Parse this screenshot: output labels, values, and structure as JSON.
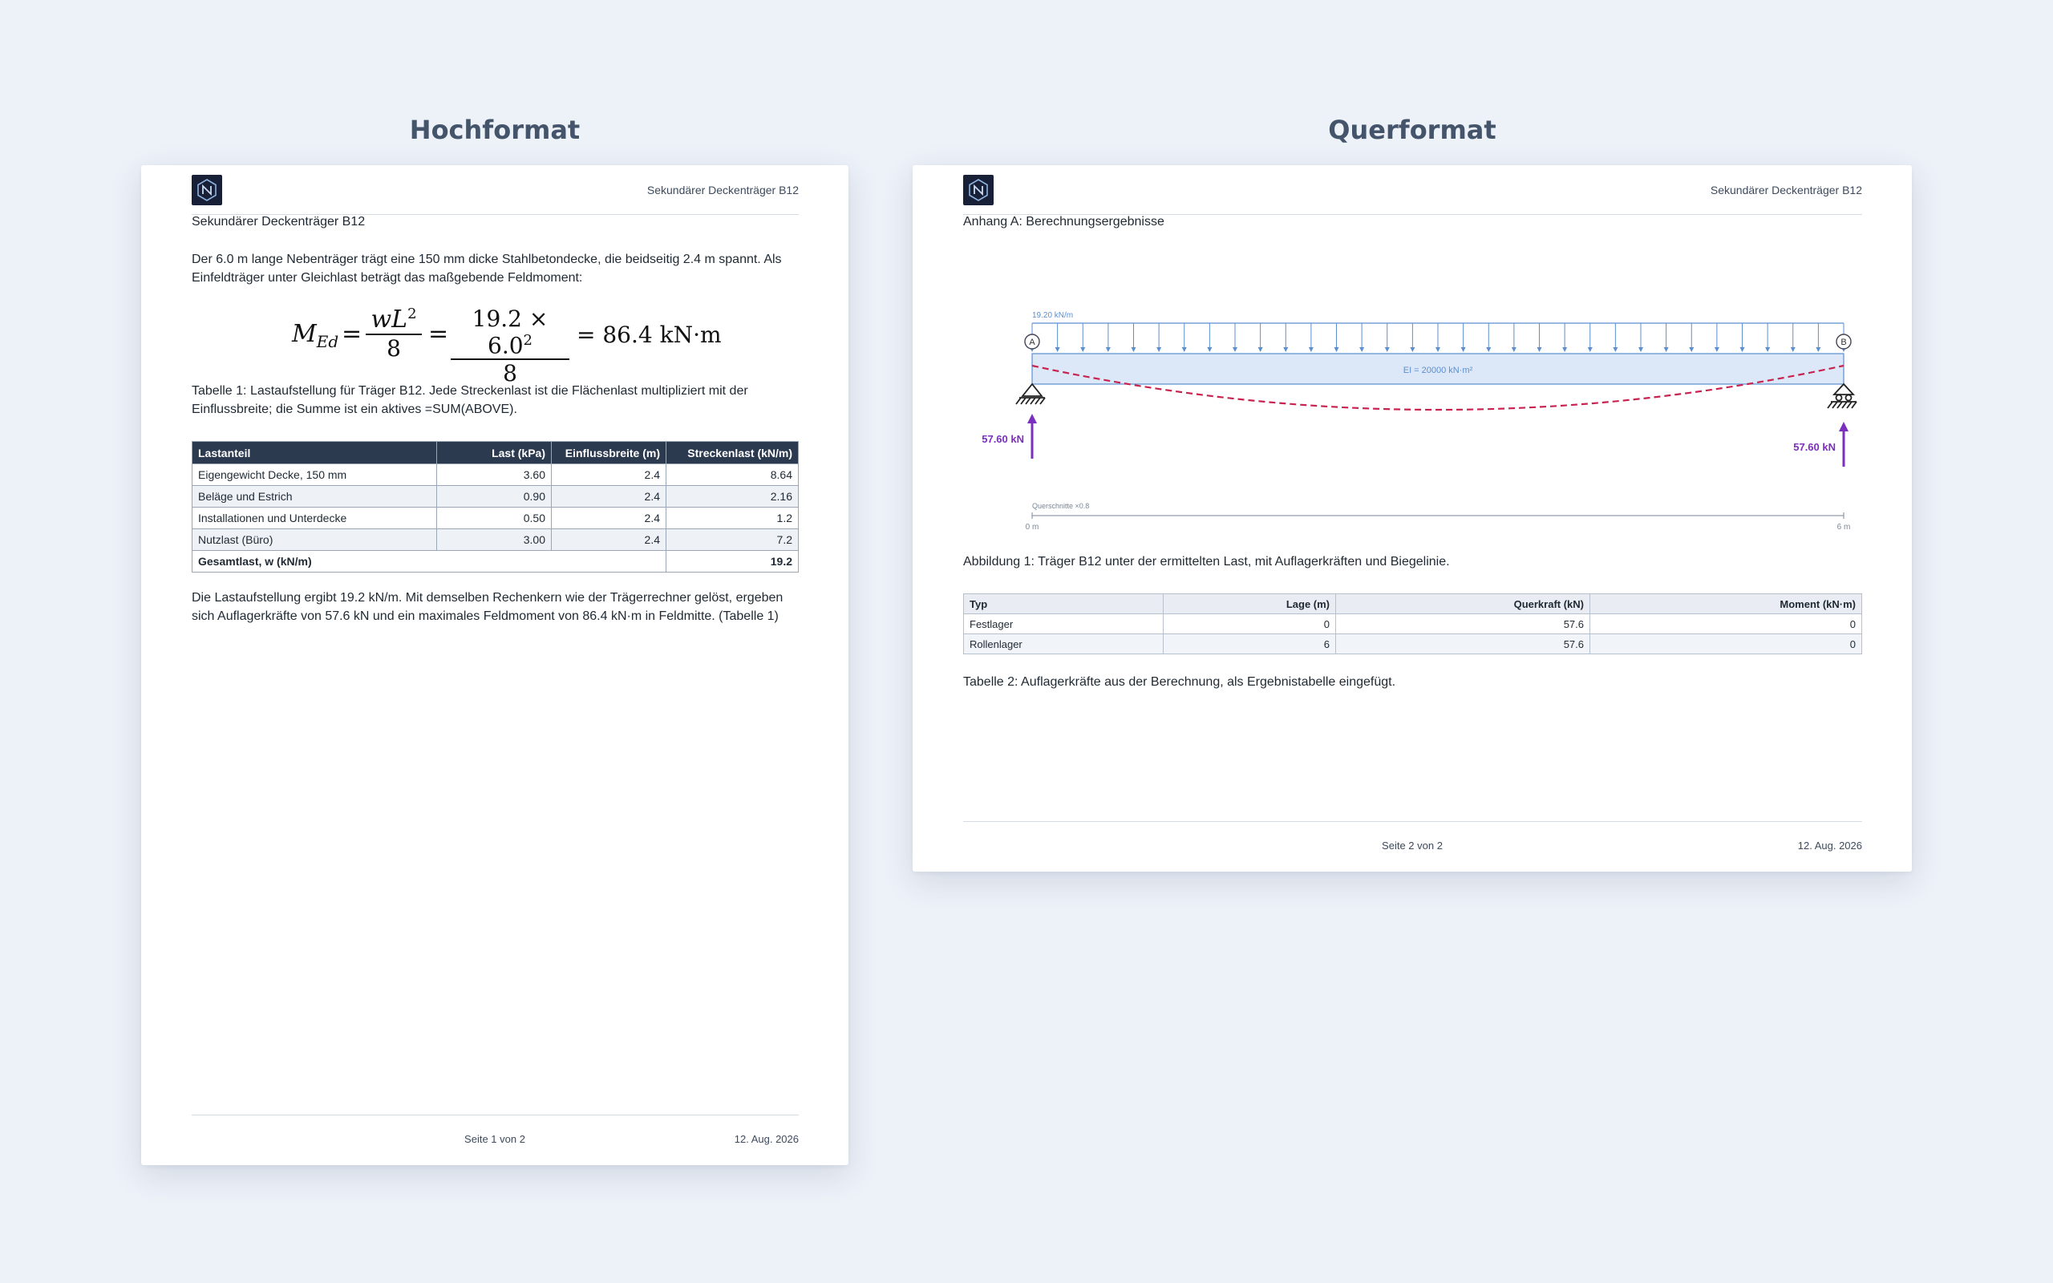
{
  "labels": {
    "portrait": "Hochformat",
    "landscape": "Querformat"
  },
  "header": {
    "doc_title": "Sekundärer Deckenträger B12"
  },
  "page1": {
    "title": "Sekundärer Deckenträger B12",
    "intro": "Der 6.0 m lange Nebenträger trägt eine 150 mm dicke Stahlbetondecke, die beidseitig 2.4 m spannt. Als Einfeldträger unter Gleichlast beträgt das maßgebende Feldmoment:",
    "formula": {
      "lhs_main": "M",
      "lhs_sub": "Ed",
      "eq": "=",
      "f1_num": "wL",
      "f1_exp": "2",
      "f1_den": "8",
      "f2_num": "19.2 × 6.0",
      "f2_exp": "2",
      "f2_den": "8",
      "result": "= 86.4 kN·m"
    },
    "table_caption": "Tabelle 1: Lastaufstellung für Träger B12. Jede Streckenlast ist die Flächenlast multipliziert mit der Einflussbreite; die Summe ist ein aktives =SUM(ABOVE).",
    "table": {
      "headers": [
        "Lastanteil",
        "Last (kPa)",
        "Einflussbreite (m)",
        "Streckenlast (kN/m)"
      ],
      "rows": [
        [
          "Eigengewicht Decke, 150 mm",
          "3.60",
          "2.4",
          "8.64"
        ],
        [
          "Beläge und Estrich",
          "0.90",
          "2.4",
          "2.16"
        ],
        [
          "Installationen und Unterdecke",
          "0.50",
          "2.4",
          "1.2"
        ],
        [
          "Nutzlast (Büro)",
          "3.00",
          "2.4",
          "7.2"
        ]
      ],
      "total_label": "Gesamtlast, w (kN/m)",
      "total_value": "19.2"
    },
    "conclusion": "Die Lastaufstellung ergibt 19.2 kN/m. Mit demselben Rechenkern wie der Trägerrechner gelöst, ergeben sich Auflagerkräfte von 57.6 kN und ein maximales Feldmoment von 86.4 kN·m in Feldmitte. (Tabelle 1)",
    "footer_page": "Seite 1 von 2",
    "footer_date": "12. Aug. 2026"
  },
  "page2": {
    "section": "Anhang A: Berechnungsergebnisse",
    "diagram": {
      "load_label": "19.20 kN/m",
      "ei_label": "EI = 20000 kN·m²",
      "support_a": "A",
      "support_b": "B",
      "reaction_left": "57.60 kN",
      "reaction_right": "57.60 kN",
      "scale_note": "Querschnitte ×0.8",
      "axis_start": "0 m",
      "axis_end": "6 m",
      "load_arrow_count": 33
    },
    "figure_caption": "Abbildung 1: Träger B12 unter der ermittelten Last, mit Auflagerkräften und Biegelinie.",
    "table": {
      "headers": [
        "Typ",
        "Lage (m)",
        "Querkraft (kN)",
        "Moment (kN·m)"
      ],
      "rows": [
        [
          "Festlager",
          "0",
          "57.6",
          "0"
        ],
        [
          "Rollenlager",
          "6",
          "57.6",
          "0"
        ]
      ]
    },
    "table_caption": "Tabelle 2: Auflagerkräfte aus der Berechnung, als Ergebnistabelle eingefügt.",
    "footer_page": "Seite 2 von 2",
    "footer_date": "12. Aug. 2026"
  },
  "colors": {
    "load": "#5b8fd0",
    "beam_fill": "#dce8f8",
    "deflection": "#c8234f",
    "reaction": "#7b2fbe",
    "table_header": "#2c3a50"
  }
}
